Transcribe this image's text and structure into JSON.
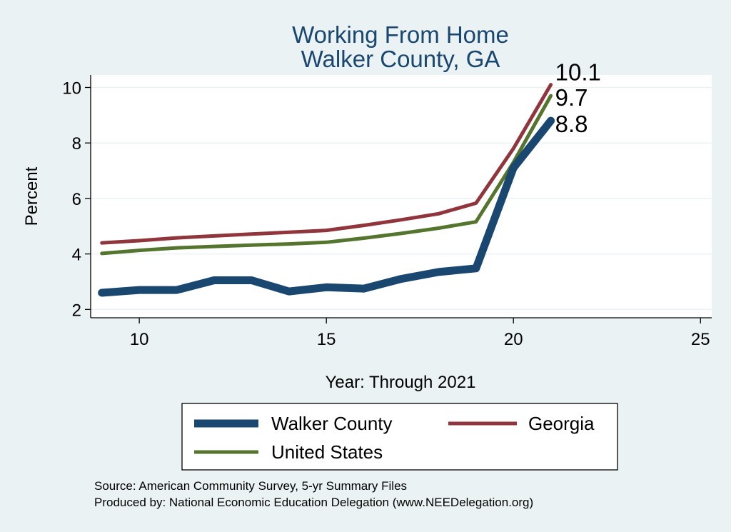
{
  "chart_data": {
    "type": "line",
    "title": "Working From Home",
    "subtitle": "Walker County, GA",
    "xlabel": "Year: Through 2021",
    "ylabel": "Percent",
    "xlim": [
      8.7,
      25.3
    ],
    "ylim": [
      1.7,
      10.45
    ],
    "xticks": [
      10,
      15,
      20,
      25
    ],
    "yticks": [
      2,
      4,
      6,
      8,
      10
    ],
    "grid": true,
    "legend_position": "bottom",
    "x": [
      9,
      10,
      11,
      12,
      13,
      14,
      15,
      16,
      17,
      18,
      19,
      20,
      21
    ],
    "series": [
      {
        "name": "Walker County",
        "color": "#1a476f",
        "values": [
          2.6,
          2.7,
          2.7,
          3.05,
          3.05,
          2.65,
          2.8,
          2.75,
          3.1,
          3.35,
          3.48,
          7.1,
          8.8
        ],
        "end_label": "8.8"
      },
      {
        "name": "Georgia",
        "color": "#90353b",
        "values": [
          4.4,
          4.48,
          4.58,
          4.65,
          4.72,
          4.78,
          4.85,
          5.03,
          5.23,
          5.45,
          5.83,
          7.8,
          10.1
        ],
        "end_label": "10.1"
      },
      {
        "name": "United States",
        "color": "#55752f",
        "values": [
          4.02,
          4.13,
          4.22,
          4.27,
          4.32,
          4.36,
          4.42,
          4.57,
          4.74,
          4.93,
          5.16,
          7.3,
          9.7
        ],
        "end_label": "9.7"
      }
    ],
    "notes": [
      "Source: American Community Survey, 5-yr Summary Files",
      "Produced by: National Economic Education Delegation (www.NEEDelegation.org)"
    ]
  },
  "colors": {
    "background": "#eaf2f3",
    "plot_background": "#ffffff",
    "title": "#1a476f",
    "grid": "#eaf2f3"
  }
}
